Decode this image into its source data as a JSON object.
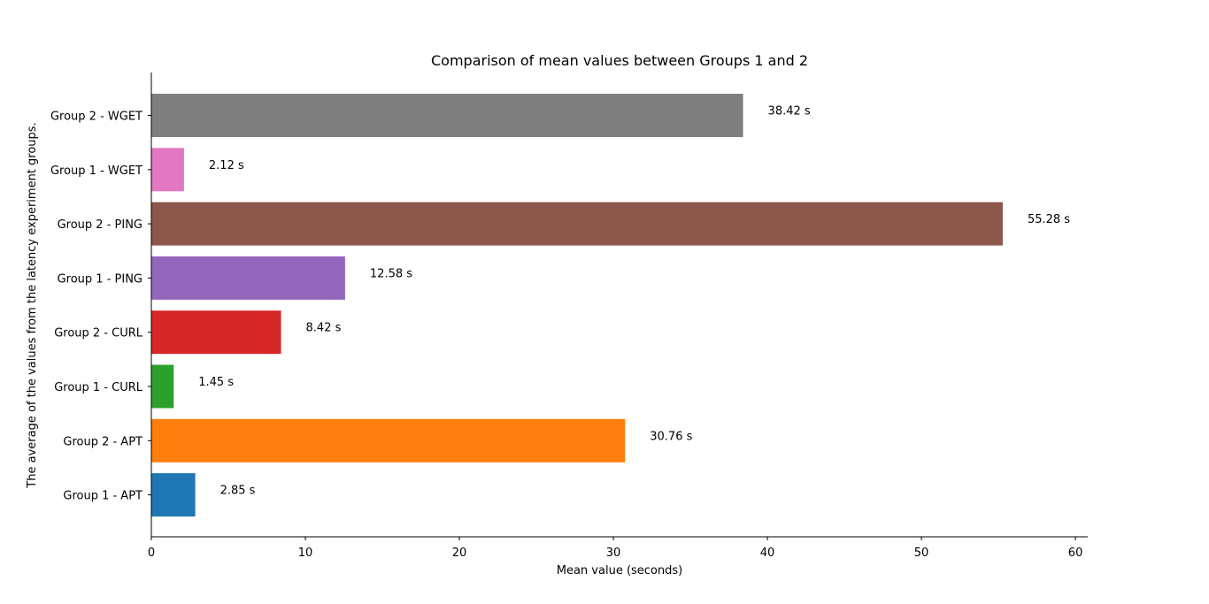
{
  "chart_data": {
    "type": "bar",
    "orientation": "horizontal",
    "title": "Comparison of mean values between Groups 1 and 2",
    "xlabel": "Mean value (seconds)",
    "ylabel": "The average of the values from the latency experiment groups.",
    "xlim": [
      0,
      60.8
    ],
    "xticks": [
      0,
      10,
      20,
      30,
      40,
      50,
      60
    ],
    "categories": [
      "Group 1 - APT",
      "Group 2 - APT",
      "Group 1 - CURL",
      "Group 2 - CURL",
      "Group 1 - PING",
      "Group 2 - PING",
      "Group 1 - WGET",
      "Group 2 - WGET"
    ],
    "values": [
      2.85,
      30.76,
      1.45,
      8.42,
      12.58,
      55.28,
      2.12,
      38.42
    ],
    "value_labels": [
      "2.85 s",
      "30.76 s",
      "1.45 s",
      "8.42 s",
      "12.58 s",
      "55.28 s",
      "2.12 s",
      "38.42 s"
    ],
    "colors": [
      "#1f77b4",
      "#ff7f0e",
      "#2ca02c",
      "#d62728",
      "#9467bd",
      "#8c564b",
      "#e377c2",
      "#7f7f7f"
    ],
    "grid": false,
    "legend": "none"
  }
}
